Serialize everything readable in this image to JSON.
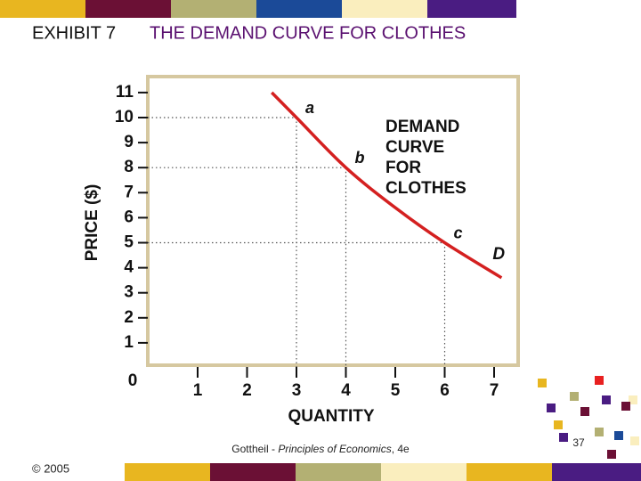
{
  "chart_data": {
    "type": "line",
    "title_prefix": "EXHIBIT 7",
    "title": "THE DEMAND CURVE FOR CLOTHES",
    "x_label": "QUANTITY",
    "y_label": "PRICE ($)",
    "x": [
      2.5,
      3,
      4,
      5,
      6,
      7.15
    ],
    "series": [
      {
        "name": "D",
        "color": "#d42020",
        "values": [
          11,
          10,
          8,
          6.4,
          5,
          3.6
        ]
      }
    ],
    "point_labels": [
      null,
      "a",
      "b",
      null,
      "c",
      null
    ],
    "annotation": [
      "DEMAND",
      "CURVE",
      "FOR",
      "CLOTHES"
    ],
    "origin_label": "0",
    "xlim": [
      0,
      7.5
    ],
    "ylim": [
      0,
      11.7
    ],
    "xticks": [
      1,
      2,
      3,
      4,
      5,
      6,
      7
    ],
    "yticks": [
      1,
      2,
      3,
      4,
      5,
      6,
      7,
      8,
      9,
      10,
      11
    ]
  },
  "footer": {
    "copyright": "© 2005",
    "source_author": "Gottheil - ",
    "source_title": "Principles of Economics",
    "source_edition": ", 4e",
    "page": "37"
  }
}
